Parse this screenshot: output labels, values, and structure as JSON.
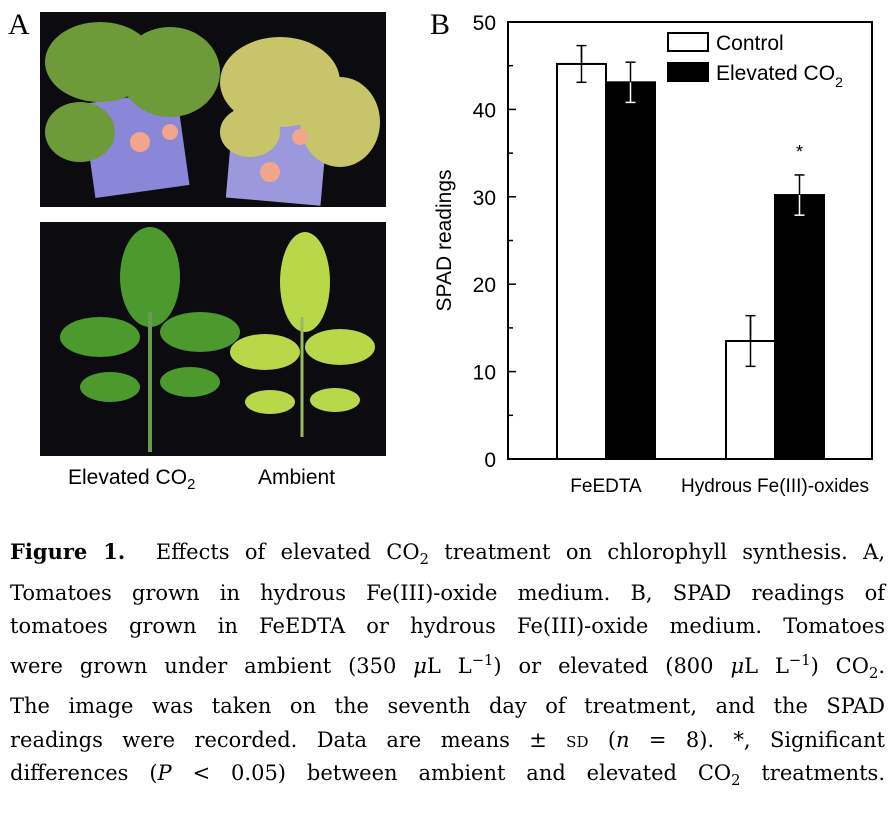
{
  "panel_a": {
    "letter": "A",
    "label_left": "Elevated CO",
    "label_left_sub": "2",
    "label_right": "Ambient"
  },
  "chart_data": {
    "type": "bar",
    "panel_letter": "B",
    "ylabel": "SPAD readings",
    "ylim": [
      0,
      50
    ],
    "yticks": [
      0,
      10,
      20,
      30,
      40,
      50
    ],
    "categories": [
      "FeEDTA",
      "Hydrous Fe(III)-oxides"
    ],
    "series": [
      {
        "name": "Control",
        "values": [
          45.2,
          13.5
        ],
        "errors": [
          2.1,
          2.9
        ],
        "color": "#ffffff"
      },
      {
        "name": "Elevated CO2",
        "values": [
          43.1,
          30.2
        ],
        "errors": [
          2.3,
          2.3
        ],
        "color": "#000000"
      }
    ],
    "legend": {
      "position": "top-right",
      "entries": [
        {
          "text": "Control",
          "sub": ""
        },
        {
          "text": "Elevated CO",
          "sub": "2"
        }
      ]
    },
    "annotations": [
      {
        "category": "Hydrous Fe(III)-oxides",
        "series": "Elevated CO2",
        "text": "*"
      }
    ],
    "grid": false
  },
  "caption": {
    "lines": [
      [
        "<b>Figure 1.</b>&nbsp; Effects of elevated CO<sub>2</sub> treatment on chlorophyll synthesis. A,"
      ],
      [
        "Tomatoes grown in hydrous Fe(III)-oxide medium. B, SPAD readings of"
      ],
      [
        "tomatoes grown in FeEDTA or hydrous Fe(III)-oxide medium. Tomatoes"
      ],
      [
        "were grown under ambient (350 <i>μ</i>L L<sup>−1</sup>) or elevated (800 <i>μ</i>L L<sup>−1</sup>) CO<sub>2</sub>."
      ],
      [
        "The image was taken on the seventh day of treatment, and the SPAD"
      ],
      [
        "readings were recorded. Data are means ± <span style=\"font-variant:small-caps\">sd</span> (<i>n</i> = 8). *, Significant"
      ],
      [
        "differences (<i>P</i> &lt; 0.05) between ambient and elevated CO<sub>2</sub> treatments."
      ]
    ]
  }
}
